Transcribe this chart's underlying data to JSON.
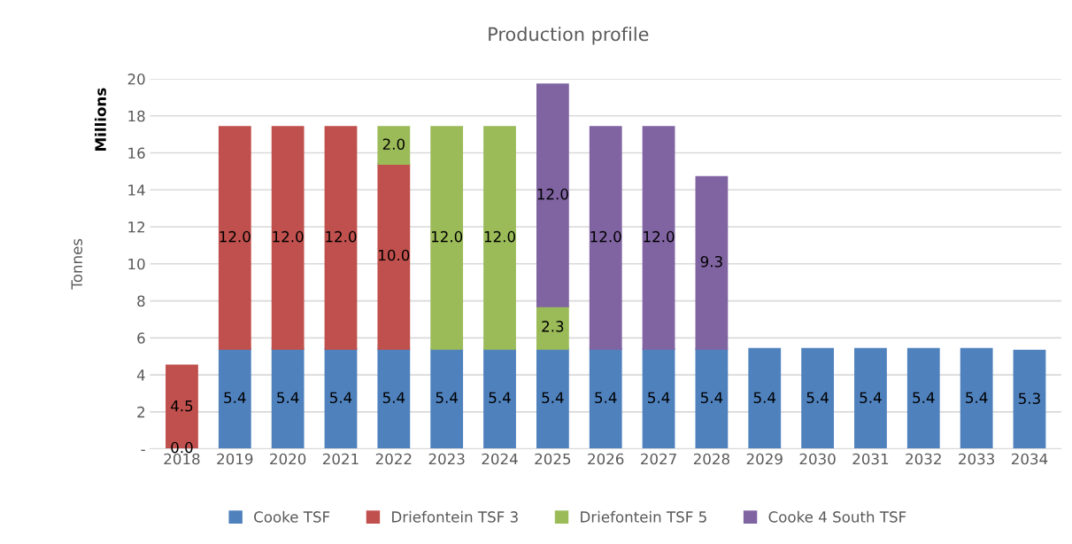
{
  "chart_data": {
    "type": "bar",
    "title": "Production profile",
    "ylabel": "Tonnes",
    "annotations": [
      "Millions"
    ],
    "categories": [
      "2018",
      "2019",
      "2020",
      "2021",
      "2022",
      "2023",
      "2024",
      "2025",
      "2026",
      "2027",
      "2028",
      "2029",
      "2030",
      "2031",
      "2032",
      "2033",
      "2034"
    ],
    "stacked": true,
    "series": [
      {
        "name": "Cooke TSF",
        "color": "#4f81bd",
        "values": [
          0.0,
          5.4,
          5.4,
          5.4,
          5.4,
          5.4,
          5.4,
          5.4,
          5.4,
          5.4,
          5.4,
          5.4,
          5.4,
          5.4,
          5.4,
          5.4,
          5.3
        ],
        "value_labels": [
          "0.0",
          "5.4",
          "5.4",
          "5.4",
          "5.4",
          "5.4",
          "5.4",
          "5.4",
          "5.4",
          "5.4",
          "5.4",
          "5.4",
          "5.4",
          "5.4",
          "5.4",
          "5.4",
          "5.3"
        ]
      },
      {
        "name": "Driefontein TSF 3",
        "color": "#c0504d",
        "values": [
          4.5,
          12.0,
          12.0,
          12.0,
          10.0,
          null,
          null,
          null,
          null,
          null,
          null,
          null,
          null,
          null,
          null,
          null,
          null
        ],
        "value_labels": [
          "4.5",
          "12.0",
          "12.0",
          "12.0",
          "10.0",
          null,
          null,
          null,
          null,
          null,
          null,
          null,
          null,
          null,
          null,
          null,
          null
        ]
      },
      {
        "name": "Driefontein TSF 5",
        "color": "#9bbb59",
        "values": [
          null,
          null,
          null,
          null,
          2.0,
          12.0,
          12.0,
          2.3,
          null,
          null,
          null,
          null,
          null,
          null,
          null,
          null,
          null
        ],
        "value_labels": [
          null,
          null,
          null,
          null,
          "2.0",
          "12.0",
          "12.0",
          "2.3",
          null,
          null,
          null,
          null,
          null,
          null,
          null,
          null,
          null
        ]
      },
      {
        "name": "Cooke 4 South TSF",
        "color": "#8064a2",
        "values": [
          null,
          null,
          null,
          null,
          null,
          null,
          null,
          12.0,
          12.0,
          12.0,
          9.3,
          null,
          null,
          null,
          null,
          null,
          null
        ],
        "value_labels": [
          null,
          null,
          null,
          null,
          null,
          null,
          null,
          "12.0",
          "12.0",
          "12.0",
          "9.3",
          null,
          null,
          null,
          null,
          null,
          null
        ]
      }
    ],
    "ylim": [
      0,
      20
    ],
    "yticks": [
      {
        "value": 0,
        "label": "-"
      },
      2,
      4,
      6,
      8,
      10,
      12,
      14,
      16,
      18,
      20
    ],
    "grid": "y",
    "legend": "bottom"
  }
}
